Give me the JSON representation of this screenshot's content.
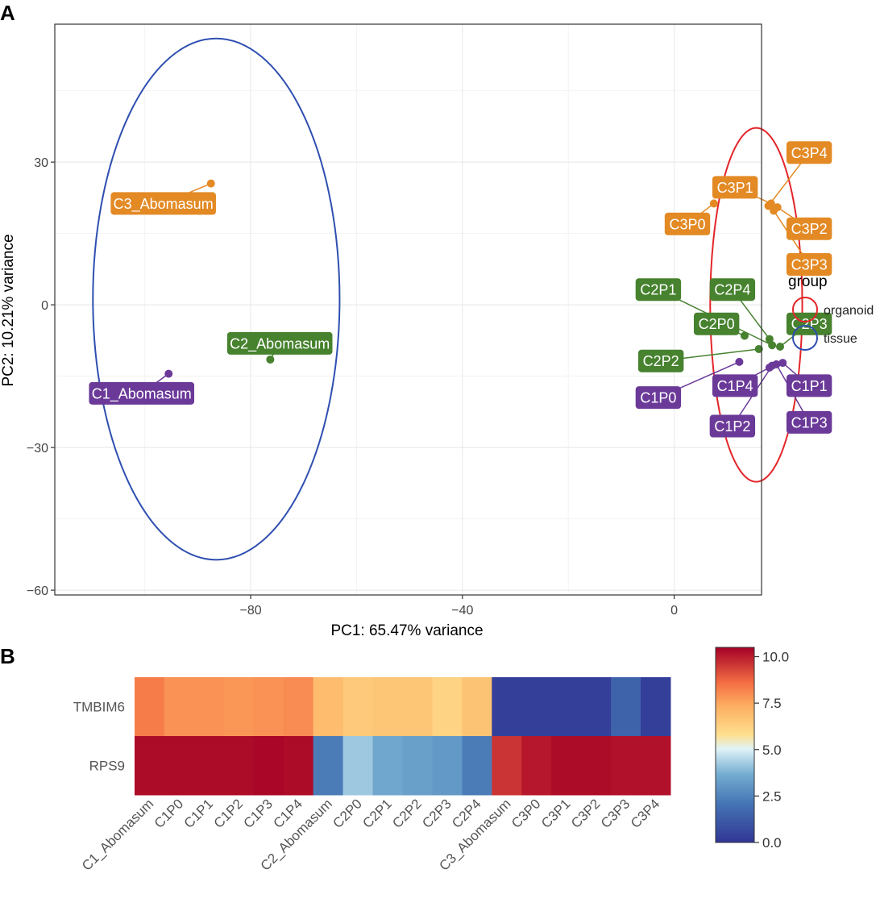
{
  "panel_a_label": "A",
  "panel_b_label": "B",
  "colors": {
    "c1": "#6b3a99",
    "c2": "#47822f",
    "c3": "#e38a25",
    "organoid": "#e2262a",
    "tissue": "#2f4fb0",
    "grid": "#ebebeb",
    "panel_border": "#333333"
  },
  "chart_data": [
    {
      "type": "scatter",
      "title": "",
      "xlabel": "PC1: 65.47% variance",
      "ylabel": "PC2: 10.21% variance",
      "xlim": [
        -117,
        16.5
      ],
      "ylim": [
        -61,
        59
      ],
      "xticks": [
        -80,
        -40,
        0
      ],
      "yticks": [
        -60,
        -30,
        0,
        30
      ],
      "legend": {
        "title": "group",
        "position": "right",
        "entries": [
          {
            "label": "organoid",
            "color": "#e2262a"
          },
          {
            "label": "tissue",
            "color": "#2f4fb0"
          }
        ]
      },
      "ellipses": [
        {
          "group": "tissue",
          "cx": -86.5,
          "cy": 1.2,
          "rx": 23.3,
          "ry": 54.8,
          "color": "#2f4fb0"
        },
        {
          "group": "organoid",
          "cx": 15.5,
          "cy": 0,
          "rx": 8.7,
          "ry": 37.2,
          "color": "#e2262a"
        }
      ],
      "points": [
        {
          "label": "C3_Abomasum",
          "x": -87.5,
          "y": 25.5,
          "color": "#e38a25",
          "lx": -96.5,
          "ly": 21.3
        },
        {
          "label": "C2_Abomasum",
          "x": -76.3,
          "y": -11.5,
          "color": "#47822f",
          "lx": -74.5,
          "ly": -8.1
        },
        {
          "label": "C1_Abomasum",
          "x": -95.5,
          "y": -14.5,
          "color": "#6b3a99",
          "lx": -100.6,
          "ly": -18.6
        },
        {
          "label": "C3P0",
          "x": 7.5,
          "y": 21.3,
          "color": "#e38a25",
          "lx": 2.5,
          "ly": 17
        },
        {
          "label": "C3P1",
          "x": 18.3,
          "y": 21.3,
          "color": "#e38a25",
          "lx": 11.5,
          "ly": 24.7
        },
        {
          "label": "C3P2",
          "x": 19.5,
          "y": 20.5,
          "color": "#e38a25",
          "lx": 25.5,
          "ly": 16
        },
        {
          "label": "C3P3",
          "x": 18.8,
          "y": 19.8,
          "color": "#e38a25",
          "lx": 25.5,
          "ly": 8.5
        },
        {
          "label": "C3P4",
          "x": 17.8,
          "y": 20.8,
          "color": "#e38a25",
          "lx": 25.5,
          "ly": 32
        },
        {
          "label": "C2P0",
          "x": 13.3,
          "y": -6.5,
          "color": "#47822f",
          "lx": 8,
          "ly": -4
        },
        {
          "label": "C2P1",
          "x": 18.5,
          "y": -8.5,
          "color": "#47822f",
          "lx": -3,
          "ly": 3.2
        },
        {
          "label": "C2P2",
          "x": 16,
          "y": -9.3,
          "color": "#47822f",
          "lx": -2.5,
          "ly": -11.8
        },
        {
          "label": "C2P3",
          "x": 20,
          "y": -8.8,
          "color": "#47822f",
          "lx": 25.5,
          "ly": -4
        },
        {
          "label": "C2P4",
          "x": 18,
          "y": -7.2,
          "color": "#47822f",
          "lx": 11,
          "ly": 3.2
        },
        {
          "label": "C1P0",
          "x": 12.3,
          "y": -12,
          "color": "#6b3a99",
          "lx": -3,
          "ly": -19.5
        },
        {
          "label": "C1P1",
          "x": 20.5,
          "y": -12.2,
          "color": "#6b3a99",
          "lx": 25.5,
          "ly": -17
        },
        {
          "label": "C1P2",
          "x": 18.5,
          "y": -12.8,
          "color": "#6b3a99",
          "lx": 11,
          "ly": -25.5
        },
        {
          "label": "C1P3",
          "x": 19.3,
          "y": -12.5,
          "color": "#6b3a99",
          "lx": 25.5,
          "ly": -24.7
        },
        {
          "label": "C1P4",
          "x": 18,
          "y": -13.2,
          "color": "#6b3a99",
          "lx": 11.5,
          "ly": -17
        }
      ]
    },
    {
      "type": "heatmap",
      "title": "",
      "rows": [
        "TMBIM6",
        "RPS9"
      ],
      "columns": [
        "C1_Abomasum",
        "C1P0",
        "C1P1",
        "C1P2",
        "C1P3",
        "C1P4",
        "C2_Abomasum",
        "C2P0",
        "C2P1",
        "C2P2",
        "C2P3",
        "C2P4",
        "C3_Abomasum",
        "C3P0",
        "C3P1",
        "C3P2",
        "C3P3",
        "C3P4"
      ],
      "values": [
        [
          8.3,
          7.9,
          7.9,
          7.8,
          7.9,
          8.0,
          6.9,
          6.5,
          6.6,
          6.6,
          6.2,
          6.7,
          0.3,
          0.3,
          0.3,
          0.3,
          1.5,
          0.3
        ],
        [
          10.3,
          10.3,
          10.3,
          10.3,
          10.4,
          10.3,
          2.3,
          4.2,
          3.5,
          3.3,
          3.1,
          2.3,
          9.6,
          10.1,
          10.3,
          10.3,
          10.2,
          10.2
        ]
      ],
      "colorbar": {
        "min": 0,
        "max": 10.5,
        "ticks": [
          0.0,
          2.5,
          5.0,
          7.5,
          10.0
        ],
        "tick_labels": [
          "0.0",
          "2.5",
          "5.0",
          "7.5",
          "10.0"
        ]
      }
    }
  ]
}
